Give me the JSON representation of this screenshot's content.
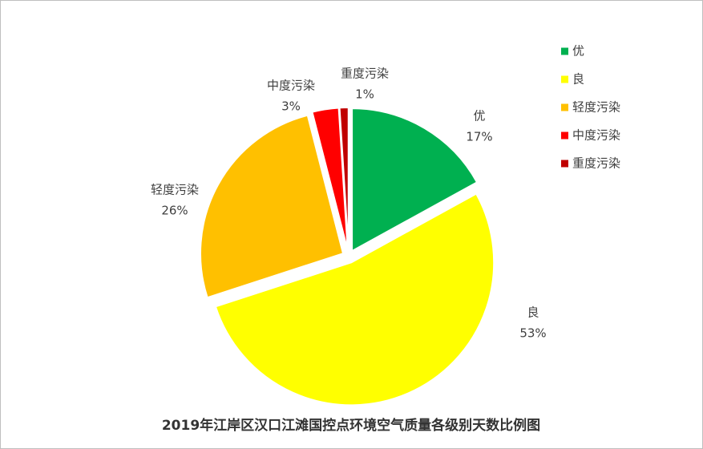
{
  "chart_data": {
    "type": "pie",
    "title": "2019年江岸区汉口江滩国控点环境空气质量各级别天数比例图",
    "categories": [
      "优",
      "良",
      "轻度污染",
      "中度污染",
      "重度污染"
    ],
    "values": [
      17,
      53,
      26,
      3,
      1
    ],
    "value_labels": [
      "17%",
      "53%",
      "26%",
      "3%",
      "1%"
    ],
    "colors": [
      "#00b050",
      "#ffff00",
      "#ffc000",
      "#ff0000",
      "#c00000"
    ],
    "legend": "right"
  }
}
